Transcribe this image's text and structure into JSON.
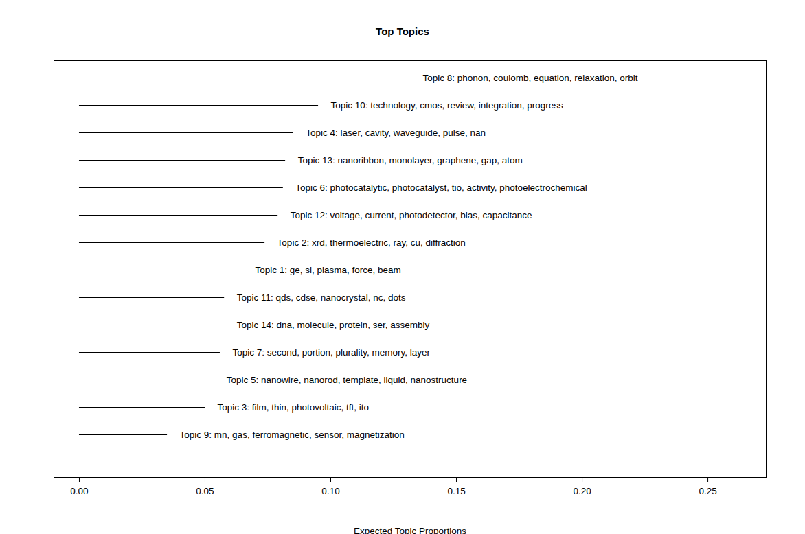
{
  "chart_data": {
    "type": "bar",
    "orientation": "horizontal",
    "title": "Top Topics",
    "x_label": "Expected Topic Proportions",
    "categories": [
      "Topic 8: phonon, coulomb, equation, relaxation, orbit",
      "Topic 10: technology, cmos, review, integration, progress",
      "Topic 4: laser, cavity, waveguide, pulse, nan",
      "Topic 13: nanoribbon, monolayer, graphene, gap, atom",
      "Topic 6: photocatalytic, photocatalyst, tio, activity, photoelectrochemical",
      "Topic 12: voltage, current, photodetector, bias, capacitance",
      "Topic 2: xrd, thermoelectric, ray, cu, diffraction",
      "Topic 1: ge, si, plasma, force, beam",
      "Topic 11: qds, cdse, nanocrystal, nc, dots",
      "Topic 14: dna, molecule, protein, ser, assembly",
      "Topic 7: second, portion, plurality, memory, layer",
      "Topic 5: nanowire, nanorod, template, liquid, nanostructure",
      "Topic 3: film, thin, photovoltaic, tft, ito",
      "Topic 9: mn, gas, ferromagnetic, sensor, magnetization"
    ],
    "values": [
      0.1317,
      0.0951,
      0.0852,
      0.082,
      0.0811,
      0.079,
      0.0738,
      0.065,
      0.0577,
      0.0577,
      0.056,
      0.0536,
      0.05,
      0.035
    ],
    "color": "#000000",
    "xlim": [
      -0.0101,
      0.2732
    ],
    "xticks": [
      {
        "value": 0,
        "label": "0.00"
      },
      {
        "value": 0.05,
        "label": "0.05"
      },
      {
        "value": 0.1,
        "label": "0.10"
      },
      {
        "value": 0.15,
        "label": "0.15"
      },
      {
        "value": 0.2,
        "label": "0.20"
      },
      {
        "value": 0.25,
        "label": "0.25"
      }
    ],
    "tick_labels": "x",
    "grid": false
  }
}
